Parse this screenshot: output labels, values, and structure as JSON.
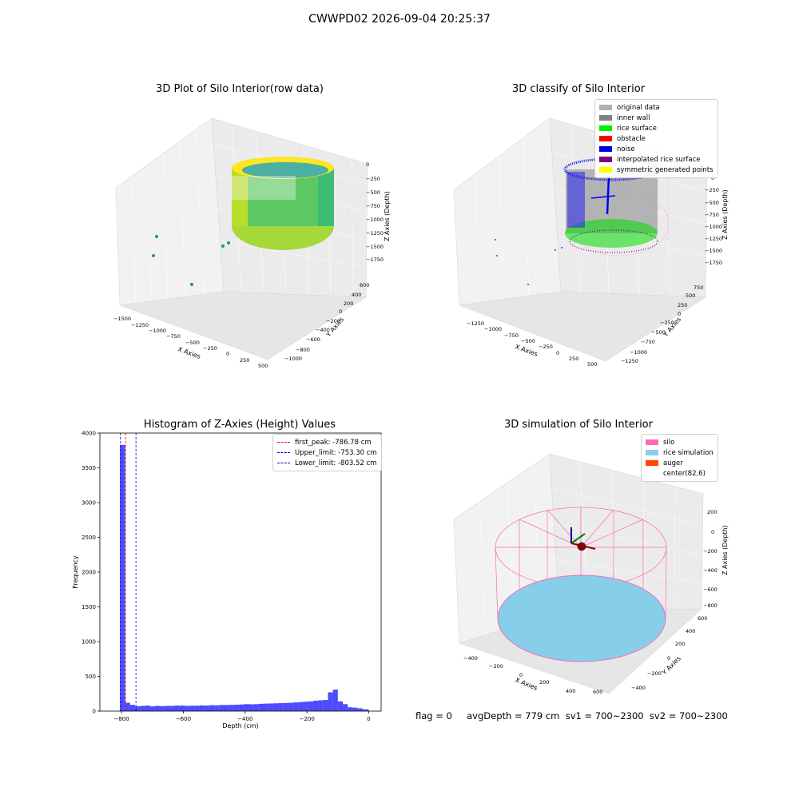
{
  "suptitle": "CWWPD02 2026-09-04 20:25:37",
  "panel1": {
    "title": "3D Plot of Silo Interior(row data)",
    "xlabel": "X Axies",
    "ylabel": "Y Axies",
    "zlabel": "Z Axies (Depth)",
    "xticks": [
      "−1500",
      "−1250",
      "−1000",
      "−750",
      "−500",
      "−250",
      "0",
      "250",
      "500"
    ],
    "yticks": [
      "−1000",
      "−800",
      "−600",
      "−400",
      "−200",
      "0",
      "200",
      "400",
      "600"
    ],
    "zticks": [
      "0",
      "−250",
      "−500",
      "−750",
      "−1000",
      "−1250",
      "−1500",
      "−1750"
    ]
  },
  "panel2": {
    "title": "3D classify of Silo Interior",
    "xlabel": "X Axies",
    "ylabel": "Y Axies",
    "zlabel": "Z Axies (Depth)",
    "xticks": [
      "−1250",
      "−1000",
      "−750",
      "−500",
      "−250",
      "0",
      "250",
      "500"
    ],
    "yticks": [
      "−1250",
      "−1000",
      "−750",
      "−500",
      "−250",
      "0",
      "250",
      "500",
      "750"
    ],
    "zticks": [
      "0",
      "−250",
      "−500",
      "−750",
      "−1000",
      "−1250",
      "−1500",
      "−1750"
    ],
    "legend": [
      {
        "label": "original data",
        "color": "#b0b0b0"
      },
      {
        "label": "inner wall",
        "color": "#808080"
      },
      {
        "label": "rice surface",
        "color": "#00ee00"
      },
      {
        "label": "obstacle",
        "color": "#ff0000"
      },
      {
        "label": "noise",
        "color": "#0000ee"
      },
      {
        "label": "interpolated rice surface",
        "color": "#800080"
      },
      {
        "label": "symmetric generated points",
        "color": "#ffff00"
      }
    ]
  },
  "panel3": {
    "title": "Histogram of Z-Axies (Height) Values",
    "xlabel": "Depth (cm)",
    "ylabel": "Frequency",
    "legend": [
      {
        "label": "first_peak: -786.78 cm",
        "color": "#ff0000"
      },
      {
        "label": "Upper_limit: -753.30 cm",
        "color": "#0000cc"
      },
      {
        "label": "Lower_limit: -803.52 cm",
        "color": "#0000cc"
      }
    ]
  },
  "panel4": {
    "title": "3D simulation of Silo Interior",
    "xlabel": "X Axies",
    "ylabel": "Y Axies",
    "zlabel": "Z Axies (Depth)",
    "xticks": [
      "−400",
      "−200",
      "0",
      "200",
      "400",
      "600"
    ],
    "yticks": [
      "−400",
      "−200",
      "0",
      "200",
      "400",
      "600"
    ],
    "zticks": [
      "200",
      "0",
      "−200",
      "−400",
      "−600",
      "−800"
    ],
    "legend": [
      {
        "label": "silo",
        "color": "#ff69b4"
      },
      {
        "label": "rice simulation",
        "color": "#87ceeb"
      },
      {
        "label": "auger",
        "color": "#ff4500"
      },
      {
        "label": "center(82,6)",
        "color": ""
      }
    ]
  },
  "footer": "flag = 0     avgDepth = 779 cm  sv1 = 700~2300  sv2 = 700~2300",
  "chart_data": {
    "type": "bar",
    "title": "Histogram of Z-Axies (Height) Values",
    "xlabel": "Depth (cm)",
    "ylabel": "Frequency",
    "xlim": [
      -870,
      40
    ],
    "ylim": [
      0,
      4000
    ],
    "xticks": [
      -800,
      -600,
      -400,
      -200,
      0
    ],
    "yticks": [
      0,
      500,
      1000,
      1500,
      2000,
      2500,
      3000,
      3500,
      4000
    ],
    "bin_edges": [
      -805,
      -788,
      -772,
      -756,
      -740,
      -724,
      -708,
      -692,
      -676,
      -660,
      -644,
      -628,
      -612,
      -596,
      -580,
      -564,
      -548,
      -532,
      -516,
      -500,
      -484,
      -468,
      -452,
      -436,
      -420,
      -404,
      -388,
      -372,
      -356,
      -340,
      -324,
      -308,
      -292,
      -276,
      -260,
      -244,
      -228,
      -212,
      -196,
      -180,
      -164,
      -148,
      -132,
      -116,
      -100,
      -84,
      -68,
      -52,
      -36,
      -20,
      0
    ],
    "values": [
      3830,
      120,
      90,
      70,
      75,
      80,
      70,
      75,
      72,
      75,
      75,
      80,
      80,
      75,
      78,
      78,
      82,
      80,
      85,
      84,
      88,
      88,
      90,
      92,
      95,
      100,
      98,
      100,
      105,
      108,
      110,
      112,
      115,
      118,
      120,
      125,
      130,
      135,
      140,
      150,
      155,
      160,
      270,
      310,
      140,
      100,
      55,
      50,
      40,
      25
    ],
    "first_peak": -786.78,
    "upper_limit": -753.3,
    "lower_limit": -803.52,
    "legend_position": "upper right"
  }
}
